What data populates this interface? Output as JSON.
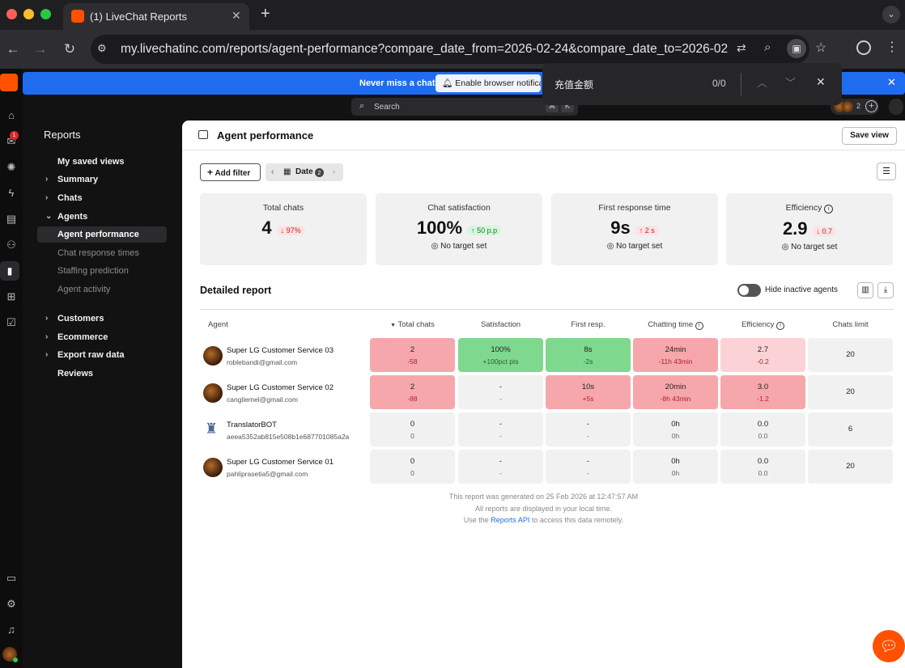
{
  "browser": {
    "tab_title": "(1) LiveChat Reports",
    "url": "my.livechatinc.com/reports/agent-performance?compare_date_from=2026-02-24&compare_date_to=2026-02...",
    "new_tab_glyph": "+",
    "find_bar": {
      "query": "充值金额",
      "count": "0/0"
    }
  },
  "banner": {
    "text": "Never miss a chat!",
    "button": "Enable browser notificati"
  },
  "search": {
    "placeholder": "Search",
    "shortcut_1": "⌘",
    "shortcut_2": "K",
    "agents_count": "2"
  },
  "rail": {
    "chats_badge": "1"
  },
  "nav": {
    "title": "Reports",
    "items": [
      {
        "label": "My saved views"
      },
      {
        "label": "Summary"
      },
      {
        "label": "Chats"
      },
      {
        "label": "Agents"
      },
      {
        "label": "Agent performance"
      },
      {
        "label": "Chat response times"
      },
      {
        "label": "Staffing prediction"
      },
      {
        "label": "Agent activity"
      },
      {
        "label": "Customers"
      },
      {
        "label": "Ecommerce"
      },
      {
        "label": "Export raw data"
      },
      {
        "label": "Reviews"
      }
    ]
  },
  "page": {
    "title": "Agent performance",
    "save_view": "Save view",
    "add_filter": "Add filter",
    "date_label": "Date",
    "date_count": "2"
  },
  "metrics": [
    {
      "title": "Total chats",
      "value": "4",
      "delta": "97%",
      "direction": "down",
      "target": ""
    },
    {
      "title": "Chat satisfaction",
      "value": "100%",
      "delta": "50 p.p",
      "direction": "up",
      "target": "No target set"
    },
    {
      "title": "First response time",
      "value": "9s",
      "delta": "2 s",
      "direction": "up",
      "target": "No target set"
    },
    {
      "title": "Efficiency",
      "value": "2.9",
      "delta": "0.7",
      "direction": "down",
      "target": "No target set"
    }
  ],
  "report": {
    "title": "Detailed report",
    "toggle_label": "Hide inactive agents",
    "columns": [
      "Agent",
      "Total chats",
      "Satisfaction",
      "First resp.",
      "Chatting time",
      "Efficiency",
      "Chats limit"
    ],
    "rows": [
      {
        "name": "Super LG Customer Service 03",
        "email": "roblebandi@gmail.com",
        "total": [
          "2",
          "-58"
        ],
        "sat": [
          "100%",
          "+100pct pts"
        ],
        "first": [
          "8s",
          "-2s"
        ],
        "chat": [
          "24min",
          "-11h 43min"
        ],
        "eff": [
          "2.7",
          "-0.2"
        ],
        "limit": "20"
      },
      {
        "name": "Super LG Customer Service 02",
        "email": "cangliemel@gmail.com",
        "total": [
          "2",
          "-88"
        ],
        "sat": [
          "-",
          "-"
        ],
        "first": [
          "10s",
          "+5s"
        ],
        "chat": [
          "20min",
          "-8h 43min"
        ],
        "eff": [
          "3.0",
          "-1.2"
        ],
        "limit": "20"
      },
      {
        "name": "TranslatorBOT",
        "email": "aeea5352ab815e508b1e687701085a2a",
        "total": [
          "0",
          "0"
        ],
        "sat": [
          "-",
          "-"
        ],
        "first": [
          "-",
          "-"
        ],
        "chat": [
          "0h",
          "0h"
        ],
        "eff": [
          "0.0",
          "0.0"
        ],
        "limit": "6"
      },
      {
        "name": "Super LG Customer Service 01",
        "email": "pahliprasetia5@gmail.com",
        "total": [
          "0",
          "0"
        ],
        "sat": [
          "-",
          "-"
        ],
        "first": [
          "-",
          "-"
        ],
        "chat": [
          "0h",
          "0h"
        ],
        "eff": [
          "0.0",
          "0.0"
        ],
        "limit": "20"
      }
    ],
    "footer_1": "This report was generated on 25 Feb 2026 at 12:47:57 AM",
    "footer_2": "All reports are displayed in your local time.",
    "footer_3a": "Use the ",
    "footer_3_link": "Reports API",
    "footer_3b": " to access this data remotely."
  },
  "colors": {
    "brand": "#ff5100",
    "banner": "#1f6cf0",
    "positive": "#7ed88d",
    "negative": "#f6a7ac"
  }
}
